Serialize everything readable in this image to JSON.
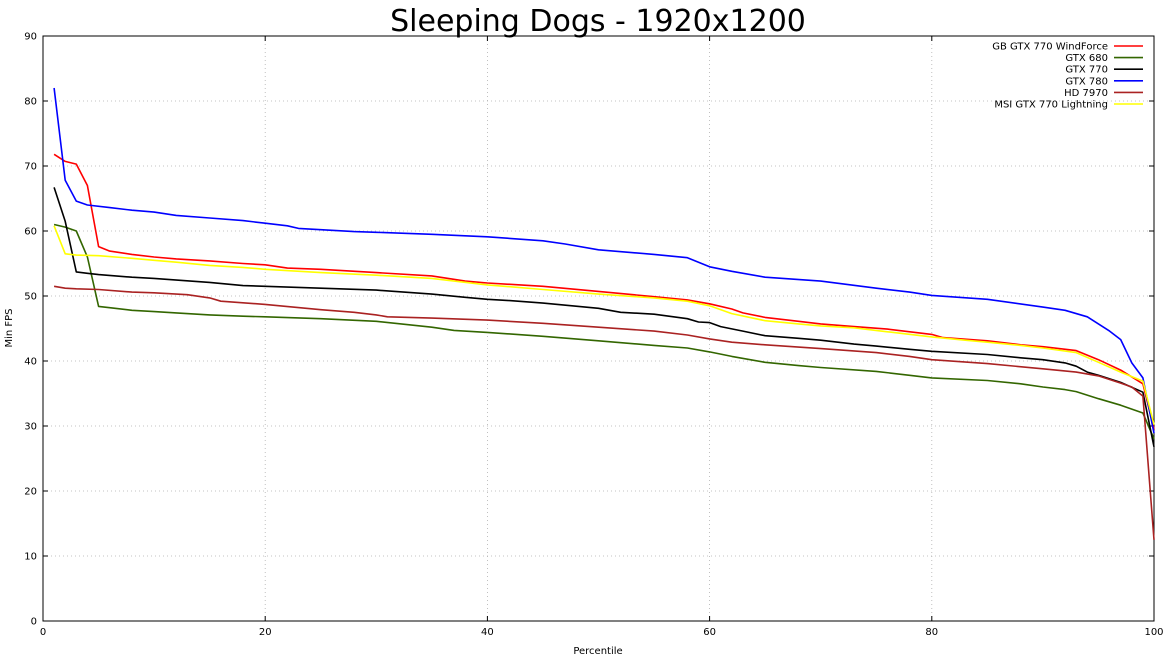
{
  "chart_data": {
    "type": "line",
    "title": "Sleeping Dogs - 1920x1200",
    "xlabel": "Percentile",
    "ylabel": "Min FPS",
    "xlim": [
      0,
      100
    ],
    "ylim": [
      0,
      90
    ],
    "x_ticks": [
      0,
      20,
      40,
      60,
      80,
      100
    ],
    "y_ticks": [
      0,
      10,
      20,
      30,
      40,
      50,
      60,
      70,
      80,
      90
    ],
    "grid": true,
    "legend_position": "top-right",
    "series": [
      {
        "name": "GB GTX 770 WindForce",
        "color": "#ff0000",
        "points": [
          [
            1,
            71.8
          ],
          [
            2,
            70.7
          ],
          [
            3,
            70.3
          ],
          [
            4,
            67
          ],
          [
            5,
            57.6
          ],
          [
            6,
            56.9
          ],
          [
            8,
            56.4
          ],
          [
            10,
            56
          ],
          [
            12,
            55.7
          ],
          [
            15,
            55.4
          ],
          [
            18,
            55
          ],
          [
            20,
            54.8
          ],
          [
            22,
            54.3
          ],
          [
            25,
            54.1
          ],
          [
            30,
            53.6
          ],
          [
            35,
            53.1
          ],
          [
            38,
            52.3
          ],
          [
            40,
            52
          ],
          [
            45,
            51.5
          ],
          [
            50,
            50.7
          ],
          [
            55,
            49.9
          ],
          [
            58,
            49.4
          ],
          [
            60,
            48.8
          ],
          [
            62,
            48
          ],
          [
            63,
            47.4
          ],
          [
            65,
            46.7
          ],
          [
            68,
            46.1
          ],
          [
            70,
            45.7
          ],
          [
            73,
            45.3
          ],
          [
            76,
            44.9
          ],
          [
            80,
            44.1
          ],
          [
            81,
            43.6
          ],
          [
            85,
            43.1
          ],
          [
            88,
            42.5
          ],
          [
            90,
            42.2
          ],
          [
            93,
            41.6
          ],
          [
            95,
            40.2
          ],
          [
            97,
            38.6
          ],
          [
            99,
            36.5
          ],
          [
            100,
            29.5
          ]
        ]
      },
      {
        "name": "GTX 680",
        "color": "#336600",
        "points": [
          [
            1,
            61
          ],
          [
            2,
            60.6
          ],
          [
            3,
            60
          ],
          [
            4,
            56
          ],
          [
            5,
            48.4
          ],
          [
            6,
            48.2
          ],
          [
            8,
            47.8
          ],
          [
            10,
            47.6
          ],
          [
            12,
            47.4
          ],
          [
            15,
            47.1
          ],
          [
            18,
            46.9
          ],
          [
            20,
            46.8
          ],
          [
            25,
            46.5
          ],
          [
            30,
            46.1
          ],
          [
            35,
            45.2
          ],
          [
            37,
            44.7
          ],
          [
            40,
            44.4
          ],
          [
            45,
            43.8
          ],
          [
            50,
            43.1
          ],
          [
            55,
            42.4
          ],
          [
            58,
            42
          ],
          [
            60,
            41.4
          ],
          [
            62,
            40.7
          ],
          [
            65,
            39.8
          ],
          [
            68,
            39.3
          ],
          [
            70,
            39
          ],
          [
            75,
            38.4
          ],
          [
            78,
            37.8
          ],
          [
            80,
            37.4
          ],
          [
            85,
            37
          ],
          [
            88,
            36.5
          ],
          [
            90,
            36
          ],
          [
            92,
            35.6
          ],
          [
            93,
            35.3
          ],
          [
            95,
            34.2
          ],
          [
            97,
            33.2
          ],
          [
            99,
            32
          ],
          [
            100,
            28
          ]
        ]
      },
      {
        "name": "GTX 770",
        "color": "#000000",
        "points": [
          [
            1,
            66.7
          ],
          [
            2,
            61.5
          ],
          [
            3,
            53.7
          ],
          [
            4,
            53.5
          ],
          [
            5,
            53.3
          ],
          [
            8,
            52.9
          ],
          [
            10,
            52.7
          ],
          [
            15,
            52.1
          ],
          [
            18,
            51.6
          ],
          [
            20,
            51.5
          ],
          [
            25,
            51.2
          ],
          [
            30,
            50.9
          ],
          [
            35,
            50.3
          ],
          [
            38,
            49.8
          ],
          [
            40,
            49.5
          ],
          [
            42,
            49.3
          ],
          [
            45,
            48.9
          ],
          [
            50,
            48.1
          ],
          [
            52,
            47.5
          ],
          [
            55,
            47.2
          ],
          [
            58,
            46.5
          ],
          [
            59,
            46
          ],
          [
            60,
            45.9
          ],
          [
            61,
            45.3
          ],
          [
            63,
            44.6
          ],
          [
            65,
            43.9
          ],
          [
            68,
            43.5
          ],
          [
            70,
            43.2
          ],
          [
            73,
            42.6
          ],
          [
            75,
            42.3
          ],
          [
            78,
            41.8
          ],
          [
            80,
            41.5
          ],
          [
            85,
            41
          ],
          [
            88,
            40.5
          ],
          [
            90,
            40.2
          ],
          [
            92,
            39.7
          ],
          [
            93,
            39.2
          ],
          [
            94,
            38.3
          ],
          [
            95,
            37.8
          ],
          [
            97,
            36.7
          ],
          [
            99,
            35.2
          ],
          [
            100,
            26.8
          ]
        ]
      },
      {
        "name": "GTX 780",
        "color": "#0000ff",
        "points": [
          [
            1,
            82
          ],
          [
            2,
            67.8
          ],
          [
            3,
            64.6
          ],
          [
            4,
            64
          ],
          [
            6,
            63.6
          ],
          [
            8,
            63.2
          ],
          [
            10,
            62.9
          ],
          [
            12,
            62.4
          ],
          [
            15,
            62
          ],
          [
            18,
            61.6
          ],
          [
            20,
            61.2
          ],
          [
            22,
            60.8
          ],
          [
            23,
            60.4
          ],
          [
            25,
            60.2
          ],
          [
            28,
            59.9
          ],
          [
            30,
            59.8
          ],
          [
            35,
            59.5
          ],
          [
            40,
            59.1
          ],
          [
            45,
            58.5
          ],
          [
            47,
            58
          ],
          [
            50,
            57.1
          ],
          [
            55,
            56.4
          ],
          [
            58,
            55.9
          ],
          [
            60,
            54.5
          ],
          [
            62,
            53.8
          ],
          [
            65,
            52.9
          ],
          [
            70,
            52.3
          ],
          [
            75,
            51.2
          ],
          [
            78,
            50.6
          ],
          [
            80,
            50.1
          ],
          [
            85,
            49.5
          ],
          [
            90,
            48.3
          ],
          [
            92,
            47.8
          ],
          [
            94,
            46.8
          ],
          [
            96,
            44.6
          ],
          [
            97,
            43.3
          ],
          [
            98,
            39.7
          ],
          [
            99,
            37.4
          ],
          [
            100,
            28.9
          ]
        ]
      },
      {
        "name": "HD 7970",
        "color": "#aa2222",
        "points": [
          [
            1,
            51.5
          ],
          [
            2,
            51.2
          ],
          [
            3,
            51.1
          ],
          [
            5,
            51
          ],
          [
            8,
            50.6
          ],
          [
            10,
            50.5
          ],
          [
            13,
            50.2
          ],
          [
            15,
            49.7
          ],
          [
            16,
            49.2
          ],
          [
            20,
            48.7
          ],
          [
            25,
            47.9
          ],
          [
            28,
            47.5
          ],
          [
            30,
            47.1
          ],
          [
            31,
            46.8
          ],
          [
            35,
            46.6
          ],
          [
            40,
            46.3
          ],
          [
            45,
            45.8
          ],
          [
            50,
            45.2
          ],
          [
            55,
            44.6
          ],
          [
            58,
            44
          ],
          [
            60,
            43.4
          ],
          [
            62,
            42.9
          ],
          [
            65,
            42.5
          ],
          [
            70,
            41.9
          ],
          [
            75,
            41.3
          ],
          [
            78,
            40.7
          ],
          [
            80,
            40.2
          ],
          [
            85,
            39.6
          ],
          [
            90,
            38.8
          ],
          [
            93,
            38.3
          ],
          [
            95,
            37.7
          ],
          [
            97,
            36.6
          ],
          [
            98,
            36
          ],
          [
            99,
            34.6
          ],
          [
            100,
            12.5
          ]
        ]
      },
      {
        "name": "MSI GTX 770 Lightning",
        "color": "#ffff00",
        "points": [
          [
            1,
            60.8
          ],
          [
            2,
            56.5
          ],
          [
            3,
            56.3
          ],
          [
            5,
            56.2
          ],
          [
            8,
            55.8
          ],
          [
            10,
            55.5
          ],
          [
            12,
            55.2
          ],
          [
            15,
            54.7
          ],
          [
            18,
            54.4
          ],
          [
            20,
            54.1
          ],
          [
            25,
            53.6
          ],
          [
            30,
            53.2
          ],
          [
            35,
            52.7
          ],
          [
            40,
            51.7
          ],
          [
            45,
            51
          ],
          [
            50,
            50.3
          ],
          [
            55,
            49.7
          ],
          [
            58,
            49.2
          ],
          [
            60,
            48.5
          ],
          [
            62,
            47.3
          ],
          [
            65,
            46.2
          ],
          [
            68,
            45.7
          ],
          [
            70,
            45.4
          ],
          [
            73,
            45.1
          ],
          [
            76,
            44.5
          ],
          [
            80,
            43.7
          ],
          [
            83,
            43.2
          ],
          [
            85,
            42.9
          ],
          [
            88,
            42.4
          ],
          [
            90,
            42
          ],
          [
            93,
            41.3
          ],
          [
            95,
            39.8
          ],
          [
            97,
            38.3
          ],
          [
            99,
            36.9
          ],
          [
            100,
            30.2
          ]
        ]
      }
    ]
  }
}
